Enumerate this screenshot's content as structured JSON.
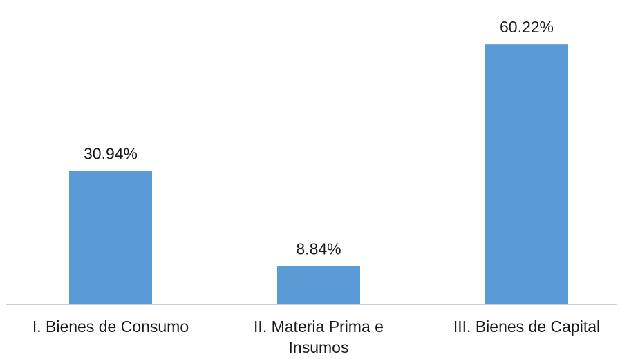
{
  "chart_data": {
    "type": "bar",
    "categories": [
      "I. Bienes de Consumo",
      "II. Materia Prima e Insumos",
      "III. Bienes de Capital"
    ],
    "category_lines": [
      [
        "I. Bienes de Consumo"
      ],
      [
        "II. Materia Prima e",
        "Insumos"
      ],
      [
        "III. Bienes de Capital"
      ]
    ],
    "values": [
      30.94,
      8.84,
      60.22
    ],
    "data_labels": [
      "30.94%",
      "8.84%",
      "60.22%"
    ],
    "ylim": [
      0,
      62
    ],
    "grid": false,
    "legend": "none",
    "colors": {
      "bar": "#5b9bd5",
      "axis": "#bfbfbf",
      "text": "#1a1a1a"
    }
  }
}
